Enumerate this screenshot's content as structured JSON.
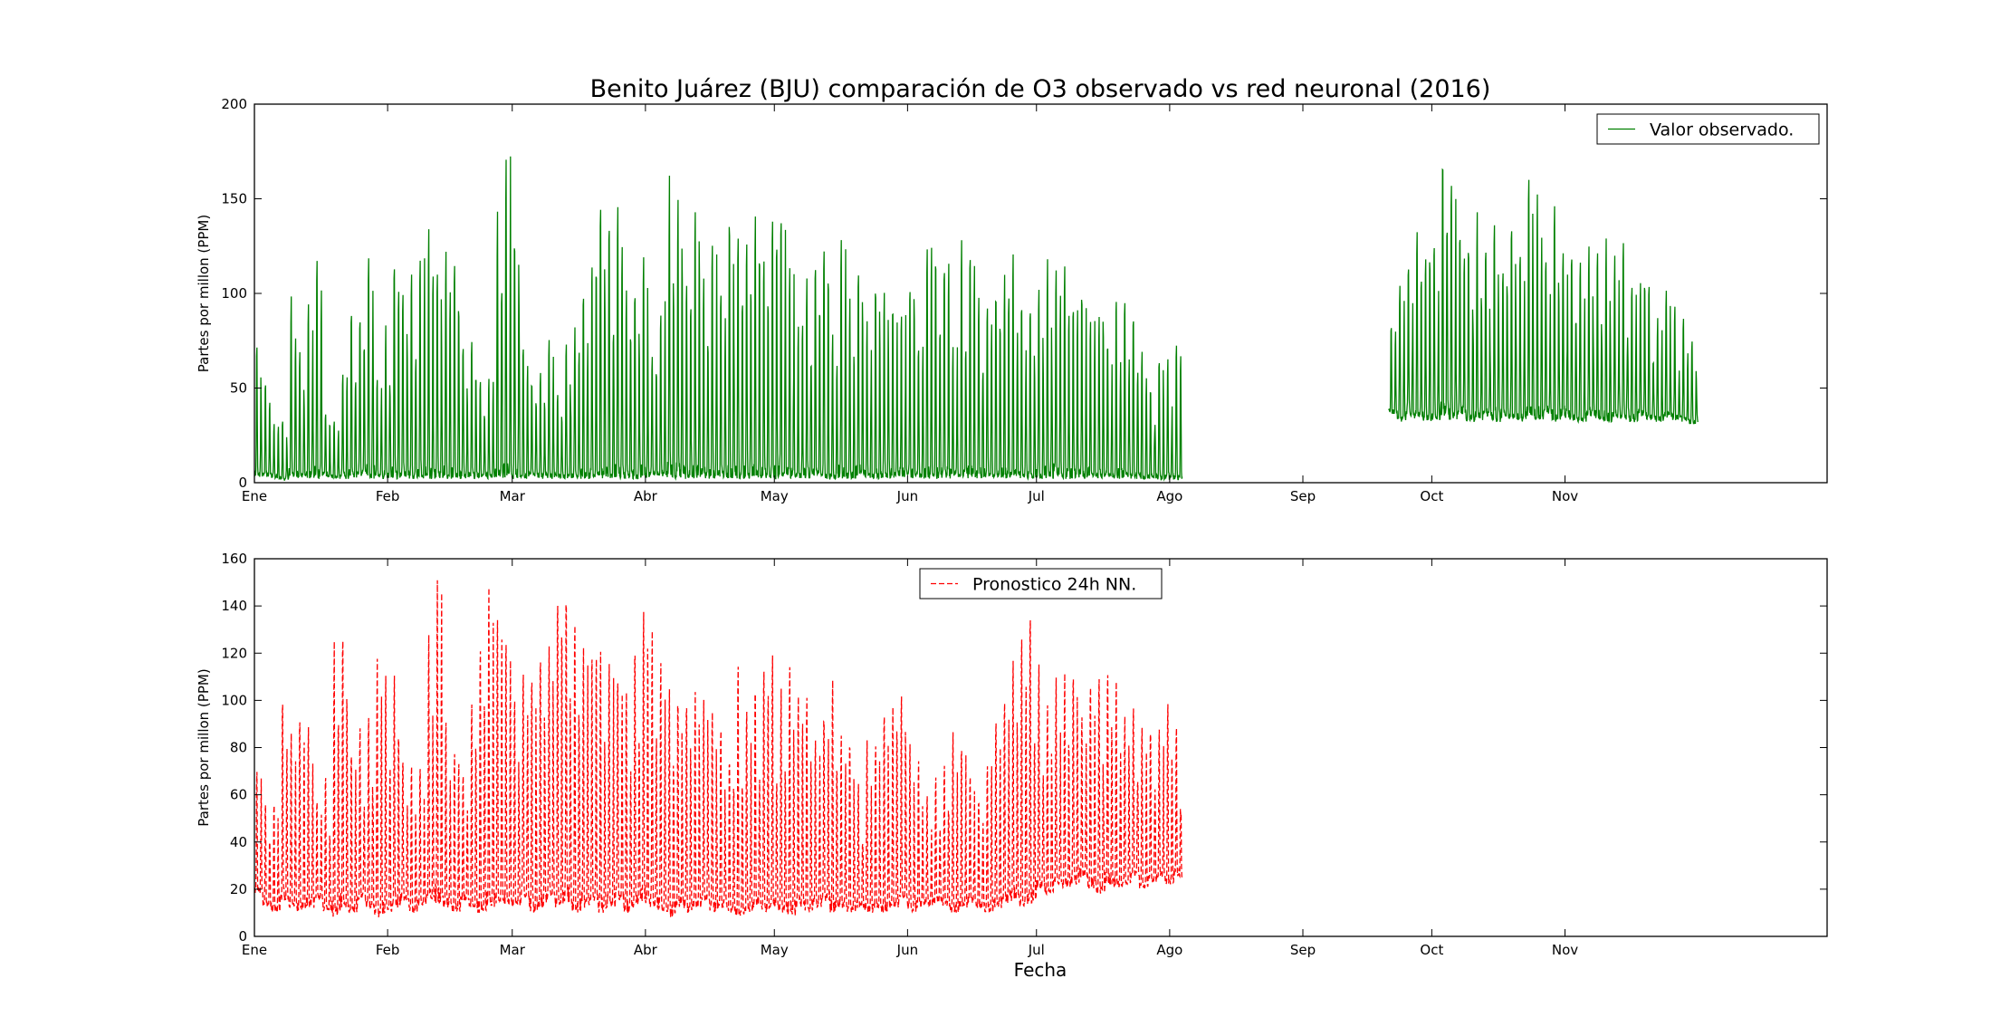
{
  "figure": {
    "title": "Benito Juárez (BJU) comparación de O3 observado vs red neuronal (2016)",
    "xlabel": "Fecha"
  },
  "chart_data": [
    {
      "type": "line",
      "ylabel": "Partes por millon (PPM)",
      "ylim": [
        0,
        200
      ],
      "yticks": [
        0,
        50,
        100,
        150,
        200
      ],
      "xlim": [
        0,
        366
      ],
      "xtick_positions": [
        0,
        31,
        60,
        91,
        121,
        152,
        182,
        213,
        244,
        274,
        305
      ],
      "xtick_labels": [
        "Ene",
        "Feb",
        "Mar",
        "Abr",
        "May",
        "Jun",
        "Jul",
        "Ago",
        "Sep",
        "Oct",
        "Nov"
      ],
      "legend_location": "upper right",
      "grid": false,
      "series": [
        {
          "name": "Valor observado.",
          "color": "#008000",
          "style": "solid",
          "x_start": 0,
          "x_step": 2,
          "daily_peak": [
            75,
            57,
            33,
            35,
            103,
            70,
            105,
            123,
            40,
            35,
            62,
            101,
            95,
            133,
            60,
            88,
            123,
            110,
            115,
            127,
            137,
            112,
            131,
            125,
            80,
            83,
            58,
            62,
            152,
            183,
            140,
            80,
            58,
            60,
            80,
            52,
            80,
            85,
            105,
            125,
            160,
            150,
            148,
            105,
            112,
            130,
            75,
            100,
            165,
            162,
            112,
            148,
            110,
            130,
            104,
            150,
            143,
            128,
            146,
            120,
            142,
            153,
            118,
            88,
            110,
            120,
            132,
            85,
            133,
            100,
            120,
            90,
            112,
            103,
            100,
            98,
            112,
            80,
            132,
            128,
            125,
            75,
            130,
            130,
            105,
            100,
            108,
            112,
            123,
            100,
            100,
            108,
            120,
            125,
            117,
            100,
            108,
            94,
            95,
            80,
            100,
            105,
            95,
            75,
            53,
            71,
            70,
            75
          ],
          "daily_min": [
            2,
            3,
            2,
            1,
            3,
            2,
            2,
            2,
            3,
            2,
            2,
            2,
            3,
            2,
            2,
            2,
            2,
            3,
            2,
            2,
            2,
            2,
            2,
            2,
            2,
            2,
            2,
            2,
            2,
            3,
            2,
            2,
            3,
            2,
            2,
            2,
            2,
            2,
            2,
            2,
            2,
            2,
            2,
            2,
            2,
            2,
            3,
            3,
            2,
            2,
            2,
            2,
            2,
            2,
            2,
            2,
            2,
            2,
            2,
            2,
            2,
            2,
            2,
            2,
            2,
            3,
            2,
            2,
            2,
            2,
            3,
            2,
            2,
            2,
            2,
            3,
            2,
            2,
            2,
            2,
            2,
            3,
            2,
            2,
            2,
            3,
            2,
            2,
            3,
            2,
            2,
            2,
            2,
            3,
            2,
            2,
            2,
            3,
            2,
            2,
            2,
            3,
            2,
            2,
            2,
            1,
            1,
            1
          ],
          "second_segment": {
            "x_start": 264,
            "x_step": 2,
            "daily_peak": [
              88,
              112,
              120,
              135,
              128,
              138,
              183,
              160,
              140,
              132,
              145,
              130,
              148,
              122,
              140,
              130,
              165,
              160,
              120,
              148,
              130,
              130,
              128,
              130,
              125,
              132,
              122,
              130,
              108,
              112,
              110,
              88,
              105,
              95,
              92,
              80
            ],
            "daily_min": [
              36,
              32,
              35,
              34,
              32,
              33,
              35,
              33,
              36,
              32,
              33,
              35,
              32,
              34,
              33,
              32,
              35,
              33,
              36,
              32,
              34,
              33,
              32,
              35,
              33,
              32,
              34,
              33,
              32,
              35,
              33,
              32,
              34,
              33,
              32,
              31
            ]
          }
        }
      ]
    },
    {
      "type": "line",
      "ylabel": "Partes por millon (PPM)",
      "ylim": [
        0,
        160
      ],
      "yticks": [
        0,
        20,
        40,
        60,
        80,
        100,
        120,
        140,
        160
      ],
      "xlim": [
        0,
        366
      ],
      "xtick_positions": [
        0,
        31,
        60,
        91,
        121,
        152,
        182,
        213,
        244,
        274,
        305
      ],
      "xtick_labels": [
        "Ene",
        "Feb",
        "Mar",
        "Abr",
        "May",
        "Jun",
        "Jul",
        "Ago",
        "Sep",
        "Oct",
        "Nov"
      ],
      "legend_location": "upper center",
      "grid": false,
      "series": [
        {
          "name": "Pronostico 24h NN.",
          "color": "#ff0000",
          "style": "dashed",
          "x_start": 0,
          "x_step": 2,
          "daily_peak": [
            75,
            58,
            60,
            105,
            90,
            98,
            95,
            62,
            70,
            130,
            142,
            85,
            95,
            100,
            120,
            123,
            120,
            82,
            80,
            75,
            130,
            157,
            92,
            80,
            75,
            100,
            125,
            150,
            145,
            130,
            110,
            120,
            115,
            130,
            128,
            150,
            157,
            140,
            134,
            128,
            128,
            125,
            120,
            115,
            130,
            150,
            132,
            120,
            113,
            110,
            107,
            110,
            103,
            100,
            90,
            80,
            118,
            108,
            112,
            125,
            122,
            110,
            124,
            112,
            110,
            88,
            100,
            112,
            92,
            90,
            72,
            88,
            85,
            98,
            100,
            110,
            88,
            80,
            62,
            72,
            80,
            90,
            88,
            70,
            62,
            80,
            98,
            110,
            122,
            140,
            145,
            118,
            102,
            112,
            113,
            120,
            103,
            110,
            114,
            122,
            110,
            100,
            105,
            90,
            93,
            95,
            103,
            97
          ],
          "daily_min": [
            18,
            12,
            10,
            15,
            12,
            10,
            12,
            15,
            10,
            8,
            12,
            10,
            15,
            12,
            8,
            10,
            12,
            15,
            10,
            12,
            15,
            14,
            12,
            10,
            15,
            12,
            10,
            12,
            14,
            13,
            12,
            15,
            10,
            12,
            15,
            12,
            14,
            10,
            12,
            15,
            10,
            12,
            15,
            10,
            12,
            14,
            12,
            10,
            8,
            12,
            10,
            12,
            15,
            10,
            12,
            10,
            8,
            10,
            12,
            10,
            12,
            10,
            8,
            12,
            10,
            12,
            15,
            10,
            12,
            10,
            12,
            10,
            12,
            10,
            12,
            15,
            10,
            12,
            13,
            14,
            12,
            10,
            12,
            14,
            12,
            10,
            12,
            14,
            15,
            12,
            14,
            20,
            18,
            22,
            20,
            22,
            25,
            20,
            18,
            22,
            20,
            22,
            25,
            20,
            22,
            25,
            22,
            25
          ]
        }
      ]
    }
  ]
}
